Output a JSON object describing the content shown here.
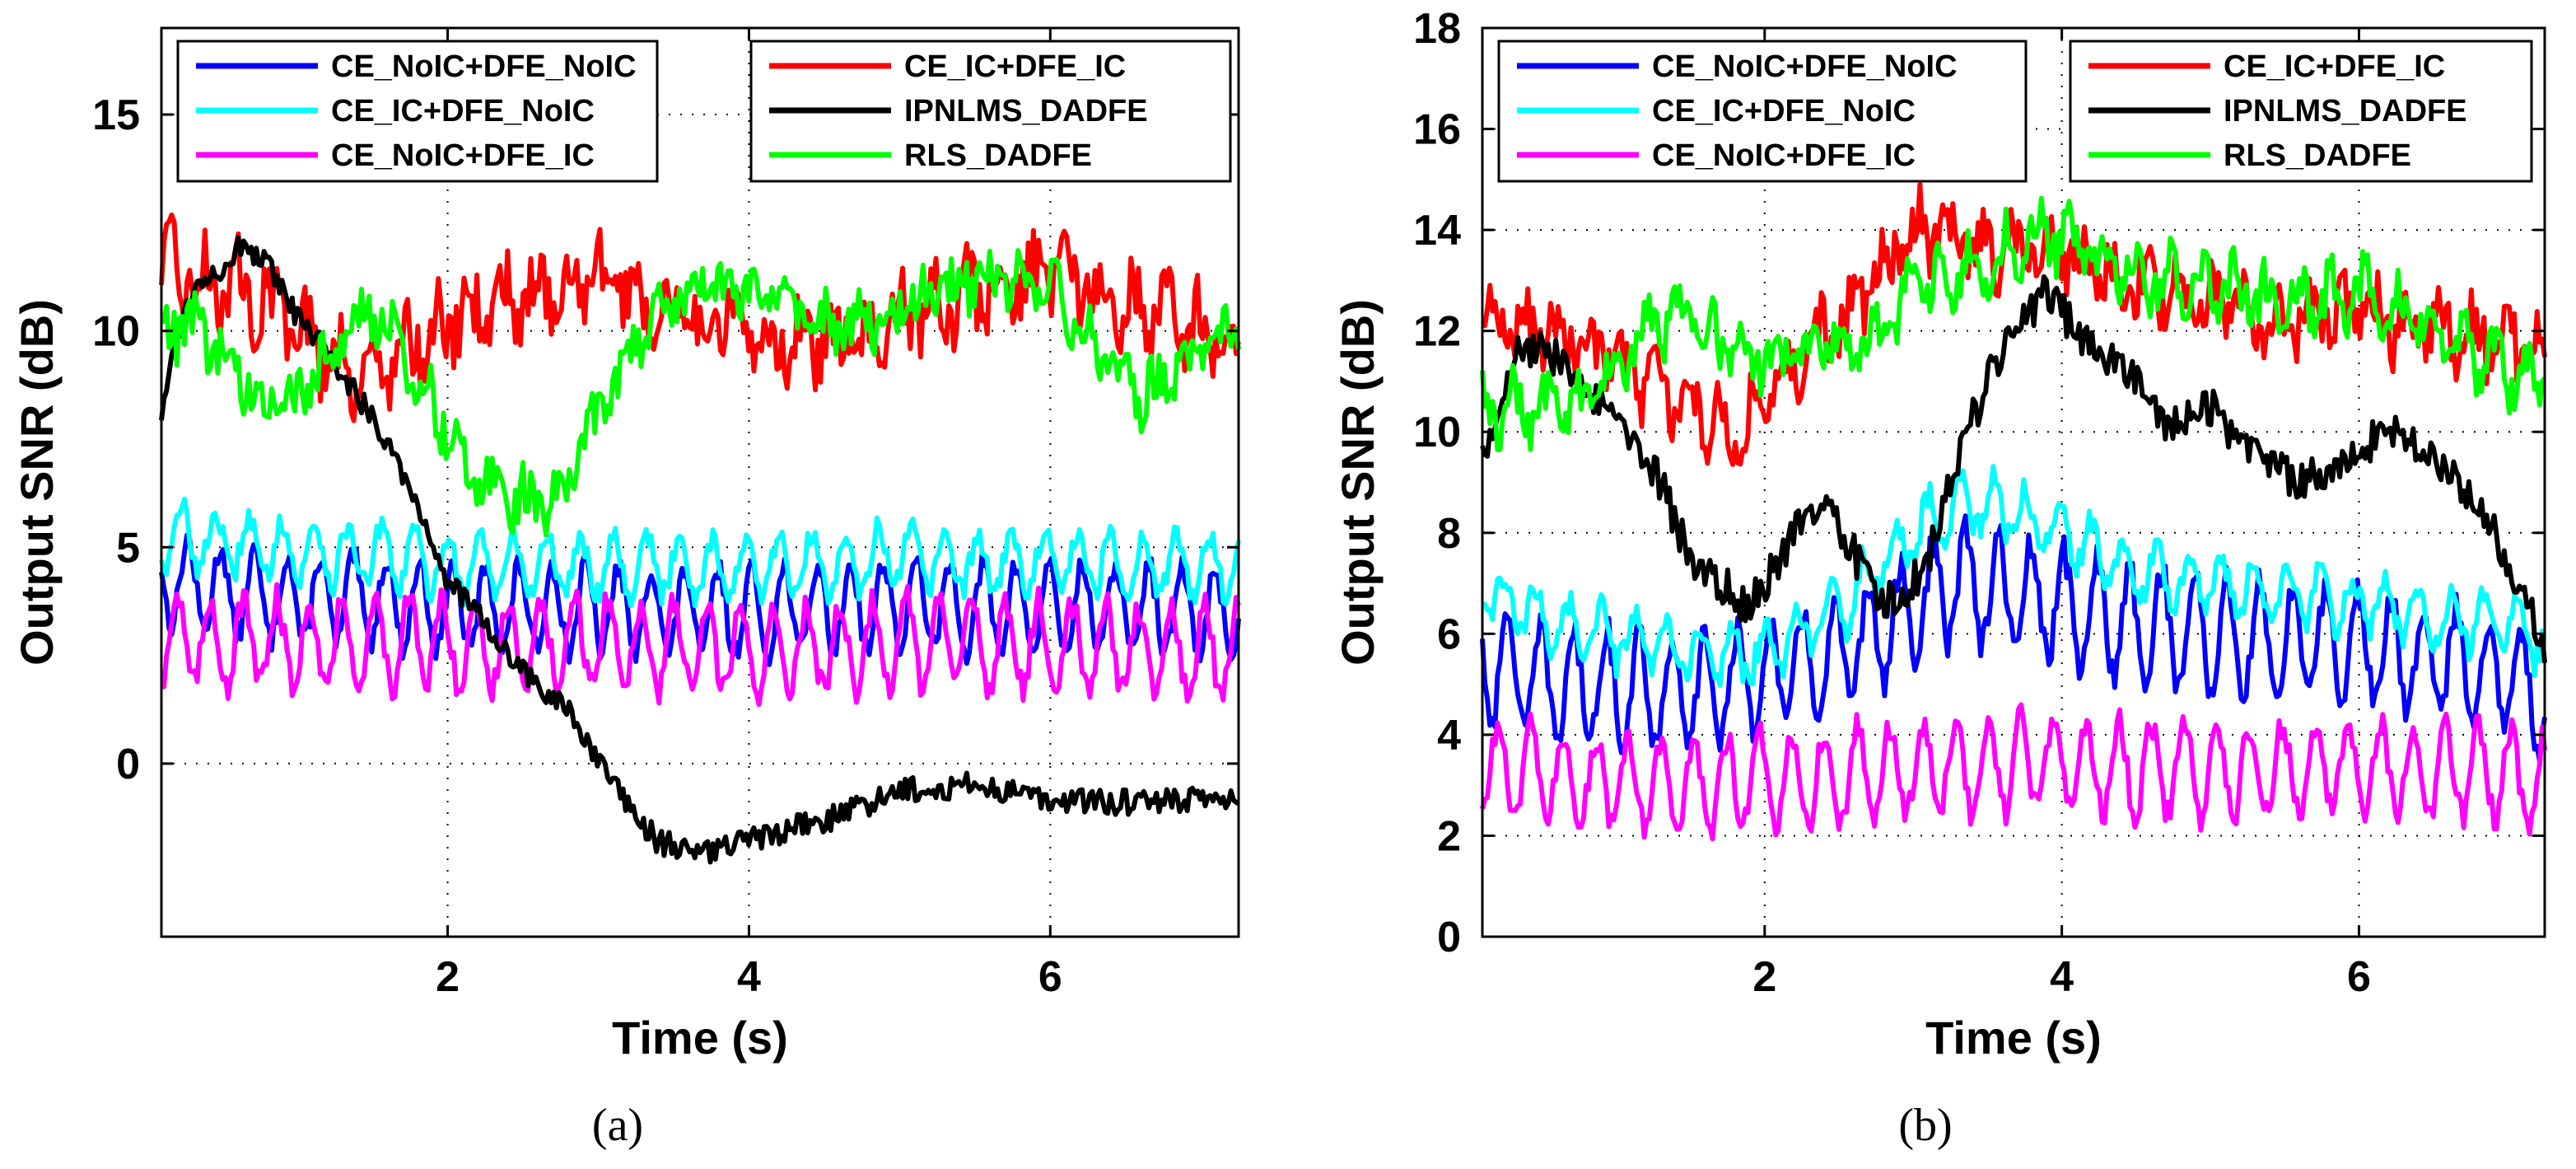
{
  "chart_data": [
    {
      "type": "line",
      "caption": "(a)",
      "xlabel": "Time (s)",
      "ylabel": "Output SNR (dB)",
      "xlim": [
        0.1,
        7.25
      ],
      "ylim": [
        -4,
        17
      ],
      "xticks": [
        2,
        4,
        6
      ],
      "yticks": [
        0,
        5,
        10,
        15
      ],
      "grid": true,
      "legend_position": "top",
      "series": [
        {
          "name": "CE_NoIC+DFE_NoIC",
          "color": "#0000ff",
          "x": [
            0.1,
            0.5,
            1.0,
            1.5,
            2.0,
            2.5,
            3.0,
            3.5,
            4.0,
            4.5,
            5.0,
            5.5,
            6.0,
            6.5,
            7.0,
            7.25
          ],
          "y": [
            4.3,
            4.0,
            3.8,
            3.8,
            3.6,
            3.6,
            3.6,
            3.5,
            3.5,
            3.6,
            3.7,
            3.6,
            3.6,
            3.6,
            3.5,
            3.5
          ],
          "osc": 1.0,
          "noise": 0.3
        },
        {
          "name": "CE_IC+DFE_NoIC",
          "color": "#00ffff",
          "x": [
            0.1,
            0.5,
            1.0,
            1.5,
            2.0,
            2.5,
            3.0,
            3.5,
            4.0,
            4.5,
            5.0,
            5.5,
            6.0,
            6.5,
            7.0,
            7.25
          ],
          "y": [
            5.3,
            5.1,
            4.9,
            4.8,
            4.6,
            4.6,
            4.6,
            4.6,
            4.5,
            4.6,
            4.8,
            4.6,
            4.7,
            4.6,
            4.6,
            4.6
          ],
          "osc": 0.7,
          "noise": 0.3
        },
        {
          "name": "CE_NoIC+DFE_IC",
          "color": "#ff00ff",
          "x": [
            0.1,
            0.5,
            1.0,
            1.5,
            2.0,
            2.5,
            3.0,
            3.5,
            4.0,
            4.5,
            5.0,
            5.5,
            6.0,
            6.5,
            7.0,
            7.25
          ],
          "y": [
            2.9,
            2.8,
            2.8,
            2.8,
            2.8,
            2.7,
            2.8,
            2.7,
            2.6,
            2.7,
            2.8,
            2.8,
            2.7,
            2.7,
            2.6,
            2.6
          ],
          "osc": 1.0,
          "noise": 0.35
        },
        {
          "name": "CE_IC+DFE_IC",
          "color": "#ff0000",
          "x": [
            0.1,
            0.3,
            0.6,
            0.9,
            1.2,
            1.5,
            1.8,
            2.1,
            2.4,
            2.7,
            3.0,
            3.3,
            3.6,
            4.0,
            4.3,
            4.6,
            5.0,
            5.3,
            5.6,
            6.0,
            6.3,
            6.6,
            7.0,
            7.25
          ],
          "y": [
            11.5,
            11.2,
            11.0,
            10.5,
            9.5,
            9.0,
            9.8,
            10.3,
            10.8,
            11.0,
            11.2,
            10.8,
            10.2,
            10.0,
            9.8,
            9.8,
            10.2,
            10.5,
            11.0,
            11.2,
            10.8,
            10.5,
            10.0,
            9.5
          ],
          "osc": 0.5,
          "noise": 0.8
        },
        {
          "name": "IPNLMS_DADFE",
          "color": "#000000",
          "x": [
            0.1,
            0.2,
            0.35,
            0.5,
            0.65,
            0.8,
            1.0,
            1.2,
            1.4,
            1.6,
            1.8,
            2.0,
            2.2,
            2.4,
            2.6,
            2.8,
            3.0,
            3.2,
            3.4,
            3.6,
            3.8,
            4.0,
            4.3,
            4.6,
            5.0,
            5.5,
            6.0,
            6.5,
            7.0,
            7.25
          ],
          "y": [
            8.0,
            10.0,
            11.2,
            11.5,
            12.0,
            11.5,
            10.3,
            9.5,
            8.5,
            7.5,
            6.0,
            4.2,
            3.5,
            2.5,
            1.8,
            1.2,
            0.0,
            -1.0,
            -1.8,
            -2.0,
            -2.0,
            -1.8,
            -1.5,
            -1.2,
            -0.6,
            -0.5,
            -0.8,
            -0.9,
            -0.8,
            -0.9
          ],
          "osc": 0.0,
          "noise": 0.3
        },
        {
          "name": "RLS_DADFE",
          "color": "#00ff00",
          "x": [
            0.1,
            0.3,
            0.6,
            0.9,
            1.2,
            1.5,
            1.8,
            2.1,
            2.4,
            2.7,
            3.0,
            3.3,
            3.6,
            4.0,
            4.3,
            4.6,
            5.0,
            5.3,
            5.6,
            6.0,
            6.3,
            6.6,
            7.0,
            7.25
          ],
          "y": [
            10.0,
            10.2,
            9.0,
            8.0,
            9.5,
            10.5,
            9.0,
            7.0,
            6.2,
            6.0,
            8.0,
            10.0,
            11.0,
            11.0,
            10.5,
            10.0,
            10.5,
            11.0,
            11.2,
            11.0,
            9.5,
            8.5,
            9.5,
            10.0
          ],
          "osc": 0.3,
          "noise": 0.6
        }
      ]
    },
    {
      "type": "line",
      "caption": "(b)",
      "xlabel": "Time (s)",
      "ylabel": "Output SNR (dB)",
      "xlim": [
        0.1,
        7.25
      ],
      "ylim": [
        0,
        18
      ],
      "xticks": [
        2,
        4,
        6
      ],
      "yticks": [
        0,
        2,
        4,
        6,
        8,
        10,
        12,
        14,
        16,
        18
      ],
      "grid": true,
      "legend_position": "top",
      "series": [
        {
          "name": "CE_NoIC+DFE_NoIC",
          "color": "#0000ff",
          "x": [
            0.1,
            0.5,
            1.0,
            1.5,
            2.0,
            2.5,
            3.0,
            3.3,
            3.6,
            4.0,
            4.5,
            5.0,
            5.5,
            6.0,
            6.5,
            7.0,
            7.25
          ],
          "y": [
            5.5,
            5.0,
            5.0,
            4.8,
            5.2,
            5.5,
            6.5,
            7.0,
            6.8,
            6.5,
            6.2,
            6.0,
            5.8,
            5.8,
            5.5,
            5.2,
            4.8
          ],
          "osc": 1.1,
          "noise": 0.35
        },
        {
          "name": "CE_IC+DFE_NoIC",
          "color": "#00ffff",
          "x": [
            0.1,
            0.5,
            1.0,
            1.5,
            2.0,
            2.5,
            3.0,
            3.3,
            3.6,
            4.0,
            4.5,
            5.0,
            5.5,
            6.0,
            6.5,
            7.0,
            7.25
          ],
          "y": [
            6.8,
            6.3,
            5.9,
            5.6,
            5.6,
            6.5,
            8.0,
            8.6,
            8.5,
            8.0,
            7.3,
            7.0,
            6.8,
            6.6,
            6.3,
            6.2,
            5.8
          ],
          "osc": 0.5,
          "noise": 0.3
        },
        {
          "name": "CE_NoIC+DFE_IC",
          "color": "#ff00ff",
          "x": [
            0.1,
            0.5,
            1.0,
            1.5,
            2.0,
            2.5,
            3.0,
            3.5,
            4.0,
            4.5,
            5.0,
            5.5,
            6.0,
            6.5,
            7.0,
            7.25
          ],
          "y": [
            3.3,
            3.2,
            3.0,
            3.0,
            3.1,
            3.2,
            3.3,
            3.4,
            3.4,
            3.3,
            3.3,
            3.3,
            3.4,
            3.3,
            3.2,
            3.0
          ],
          "osc": 0.9,
          "noise": 0.3
        },
        {
          "name": "CE_IC+DFE_IC",
          "color": "#ff0000",
          "x": [
            0.1,
            0.4,
            0.8,
            1.2,
            1.5,
            1.8,
            2.1,
            2.5,
            2.8,
            3.0,
            3.3,
            3.6,
            3.9,
            4.2,
            4.6,
            5.0,
            5.5,
            6.0,
            6.5,
            7.0,
            7.25
          ],
          "y": [
            12.0,
            12.2,
            11.8,
            11.0,
            10.5,
            10.0,
            11.0,
            12.2,
            13.2,
            14.0,
            13.8,
            13.6,
            13.5,
            13.2,
            12.8,
            12.5,
            12.3,
            12.3,
            12.0,
            11.8,
            11.8
          ],
          "osc": 0.4,
          "noise": 0.6
        },
        {
          "name": "IPNLMS_DADFE",
          "color": "#000000",
          "x": [
            0.1,
            0.3,
            0.5,
            0.7,
            0.9,
            1.1,
            1.3,
            1.5,
            1.7,
            1.9,
            2.1,
            2.3,
            2.5,
            2.7,
            2.9,
            3.1,
            3.3,
            3.5,
            3.7,
            3.9,
            4.1,
            4.3,
            4.5,
            4.7,
            5.0,
            5.3,
            5.6,
            5.9,
            6.2,
            6.5,
            6.8,
            7.0,
            7.25
          ],
          "y": [
            9.5,
            11.5,
            11.8,
            11.0,
            10.5,
            10.0,
            9.0,
            7.5,
            7.0,
            6.5,
            7.5,
            8.5,
            8.2,
            7.0,
            6.5,
            7.5,
            9.5,
            11.0,
            12.0,
            12.8,
            12.0,
            11.5,
            11.0,
            10.0,
            10.5,
            9.5,
            9.0,
            9.5,
            10.0,
            9.5,
            8.5,
            7.5,
            5.8
          ],
          "osc": 0.0,
          "noise": 0.4
        },
        {
          "name": "RLS_DADFE",
          "color": "#00ff00",
          "x": [
            0.1,
            0.4,
            0.8,
            1.2,
            1.5,
            1.8,
            2.1,
            2.5,
            2.8,
            3.0,
            3.3,
            3.6,
            3.9,
            4.2,
            4.6,
            5.0,
            5.5,
            6.0,
            6.5,
            7.0,
            7.25
          ],
          "y": [
            10.5,
            10.5,
            10.5,
            12.0,
            12.3,
            11.5,
            11.5,
            11.8,
            12.0,
            12.8,
            13.2,
            13.5,
            14.0,
            13.5,
            13.0,
            13.0,
            12.5,
            12.8,
            12.0,
            11.2,
            11.0
          ],
          "osc": 0.4,
          "noise": 0.5
        }
      ]
    }
  ]
}
